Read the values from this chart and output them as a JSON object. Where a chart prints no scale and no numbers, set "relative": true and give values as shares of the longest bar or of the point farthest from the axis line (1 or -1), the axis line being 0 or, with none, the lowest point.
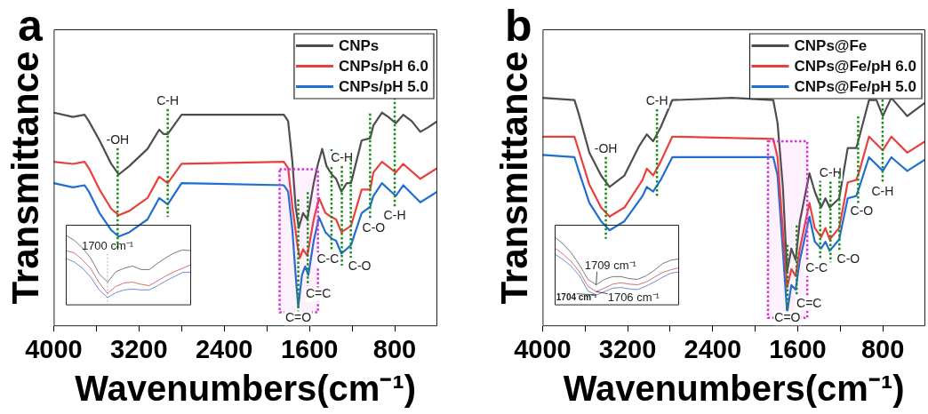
{
  "chart_data": [
    {
      "type": "line",
      "title": "a",
      "xlabel": "Wavenumbers(cm⁻¹)",
      "ylabel": "Transmittance",
      "relative": true,
      "xlim": [
        4000,
        400
      ],
      "xticks": [
        4000,
        {
          "value": 3600,
          "label": null
        },
        3200,
        {
          "value": 2800,
          "label": null
        },
        2400,
        {
          "value": 2000,
          "label": null
        },
        1600,
        {
          "value": 1200,
          "label": null
        },
        800
      ],
      "grid": false,
      "legend": "top right",
      "series": [
        {
          "name": "CNPs",
          "color": "#4d4d4d",
          "x": [
            4000,
            3820,
            3710,
            3670,
            3570,
            3460,
            3390,
            3290,
            3120,
            3010,
            2970,
            2930,
            2800,
            2340,
            1840,
            1800,
            1760,
            1730,
            1700,
            1660,
            1620,
            1560,
            1520,
            1480,
            1440,
            1390,
            1350,
            1300,
            1250,
            1210,
            1110,
            1030,
            1000,
            920,
            860,
            790,
            720,
            640,
            560,
            490,
            400
          ],
          "values": [
            1.0,
            0.98,
            0.99,
            0.96,
            0.87,
            0.76,
            0.71,
            0.75,
            0.83,
            0.92,
            0.9,
            0.9,
            0.99,
            0.99,
            0.99,
            0.96,
            0.77,
            0.56,
            0.46,
            0.53,
            0.5,
            0.67,
            0.76,
            0.83,
            0.75,
            0.71,
            0.69,
            0.63,
            0.67,
            0.67,
            0.87,
            0.88,
            0.94,
            1.0,
            0.98,
            0.95,
            0.99,
            0.96,
            0.91,
            0.93,
            0.96
          ]
        },
        {
          "name": "CNPs/pH 6.0",
          "color": "#e8413c",
          "x": [
            4000,
            3820,
            3710,
            3670,
            3570,
            3460,
            3390,
            3290,
            3120,
            3010,
            2930,
            2800,
            1840,
            1800,
            1760,
            1710,
            1690,
            1660,
            1620,
            1560,
            1510,
            1450,
            1390,
            1350,
            1300,
            1210,
            1110,
            1030,
            1000,
            920,
            790,
            720,
            560,
            400
          ],
          "values": [
            0.77,
            0.76,
            0.77,
            0.74,
            0.64,
            0.55,
            0.52,
            0.54,
            0.6,
            0.7,
            0.67,
            0.76,
            0.77,
            0.74,
            0.56,
            0.37,
            0.32,
            0.36,
            0.33,
            0.5,
            0.6,
            0.53,
            0.51,
            0.5,
            0.44,
            0.47,
            0.64,
            0.64,
            0.72,
            0.77,
            0.72,
            0.76,
            0.69,
            0.74
          ]
        },
        {
          "name": "CNPs/pH 5.0",
          "color": "#1f6fd1",
          "x": [
            4000,
            3820,
            3710,
            3670,
            3570,
            3460,
            3390,
            3290,
            3120,
            3010,
            2930,
            2800,
            1840,
            1800,
            1760,
            1730,
            1705,
            1670,
            1640,
            1610,
            1560,
            1510,
            1450,
            1390,
            1350,
            1300,
            1210,
            1110,
            1030,
            1000,
            920,
            790,
            720,
            560,
            400
          ],
          "values": [
            0.67,
            0.65,
            0.66,
            0.63,
            0.53,
            0.45,
            0.42,
            0.44,
            0.5,
            0.6,
            0.57,
            0.67,
            0.66,
            0.63,
            0.45,
            0.24,
            0.09,
            0.24,
            0.28,
            0.24,
            0.4,
            0.51,
            0.44,
            0.41,
            0.4,
            0.34,
            0.38,
            0.53,
            0.56,
            0.61,
            0.67,
            0.61,
            0.66,
            0.58,
            0.63
          ]
        }
      ],
      "ref_lines": [
        {
          "axis": "x",
          "value": 3400,
          "label": "-OH",
          "color": "#1a8c1a",
          "line_style": "dotted"
        },
        {
          "axis": "x",
          "value": 2930,
          "label": "C-H",
          "color": "#1a8c1a",
          "line_style": "dotted"
        },
        {
          "axis": "x",
          "value": 1705,
          "label": "C=O",
          "color": "#1a8c1a",
          "line_style": "dotted"
        },
        {
          "axis": "x",
          "value": 1616,
          "label": "C=C",
          "color": "#1a8c1a",
          "line_style": "dotted"
        },
        {
          "axis": "x",
          "value": 1393,
          "label": "C-C",
          "color": "#1a8c1a",
          "line_style": "dotted"
        },
        {
          "axis": "x",
          "value": 1296,
          "label": "C-H",
          "color": "#1a8c1a",
          "line_style": "dotted"
        },
        {
          "axis": "x",
          "value": 1212,
          "label": "C-O",
          "color": "#1a8c1a",
          "line_style": "dotted"
        },
        {
          "axis": "x",
          "value": 1031,
          "label": "C-O",
          "color": "#1a8c1a",
          "line_style": "dotted"
        },
        {
          "axis": "x",
          "value": 800,
          "label": "C-H",
          "color": "#1a8c1a",
          "line_style": "dotted"
        }
      ],
      "bands": [
        {
          "axis": "x",
          "from": 1880,
          "to": 1520,
          "color": "#d633d6"
        }
      ]
    },
    {
      "type": "line",
      "relative": true,
      "grid": false,
      "categories": [
        null,
        null,
        null,
        null,
        null,
        null,
        null,
        null,
        null,
        null,
        null,
        null,
        null,
        null,
        null,
        null
      ],
      "series": [
        {
          "color": "#555555",
          "values": [
            1.0,
            0.93,
            0.82,
            0.67,
            0.45,
            0.33,
            0.48,
            0.53,
            0.56,
            0.51,
            0.51,
            0.6,
            0.68,
            0.75,
            0.79,
            0.78
          ]
        },
        {
          "color": "#c0504d",
          "values": [
            0.78,
            0.75,
            0.65,
            0.52,
            0.32,
            0.17,
            0.27,
            0.32,
            0.33,
            0.3,
            0.28,
            0.35,
            0.42,
            0.48,
            0.53,
            0.58
          ]
        },
        {
          "color": "#4a6fc0",
          "values": [
            0.67,
            0.62,
            0.53,
            0.4,
            0.22,
            0.11,
            0.18,
            0.22,
            0.23,
            0.22,
            0.22,
            0.28,
            0.35,
            0.41,
            0.47,
            0.47
          ]
        }
      ],
      "annotations": [
        "1700 cm⁻¹"
      ]
    },
    {
      "type": "line",
      "title": "b",
      "xlabel": "Wavenumbers(cm⁻¹)",
      "ylabel": "Transmittance",
      "relative": true,
      "xlim": [
        4000,
        400
      ],
      "xticks": [
        4000,
        {
          "value": 3600,
          "label": null
        },
        3200,
        {
          "value": 2800,
          "label": null
        },
        2400,
        {
          "value": 2000,
          "label": null
        },
        1600,
        {
          "value": 1200,
          "label": null
        },
        800
      ],
      "grid": false,
      "legend": "top right",
      "series": [
        {
          "name": "CNPs@Fe",
          "color": "#4d4d4d",
          "x": [
            4000,
            3700,
            3660,
            3560,
            3450,
            3370,
            3230,
            3090,
            3020,
            2960,
            2890,
            2780,
            2220,
            1830,
            1790,
            1740,
            1700,
            1660,
            1620,
            1580,
            1490,
            1440,
            1380,
            1340,
            1300,
            1210,
            1130,
            1050,
            1020,
            930,
            860,
            800,
            720,
            570,
            400
          ],
          "values": [
            1.0,
            0.99,
            0.93,
            0.76,
            0.66,
            0.61,
            0.66,
            0.79,
            0.84,
            0.81,
            0.87,
            0.99,
            1.0,
            0.99,
            0.89,
            0.61,
            0.24,
            0.34,
            0.29,
            0.46,
            0.67,
            0.59,
            0.52,
            0.56,
            0.52,
            0.56,
            0.78,
            0.78,
            0.83,
            0.99,
            0.99,
            0.92,
            1.0,
            0.92,
            0.98
          ]
        },
        {
          "name": "CNPs@Fe/pH 6.0",
          "color": "#e8413c",
          "x": [
            4000,
            3700,
            3660,
            3560,
            3450,
            3370,
            3230,
            3060,
            3020,
            2960,
            2890,
            2780,
            1830,
            1790,
            1740,
            1700,
            1660,
            1620,
            1580,
            1490,
            1440,
            1380,
            1340,
            1300,
            1210,
            1130,
            1050,
            1020,
            930,
            800,
            720,
            570,
            400
          ],
          "values": [
            0.83,
            0.83,
            0.77,
            0.62,
            0.52,
            0.48,
            0.52,
            0.64,
            0.69,
            0.66,
            0.72,
            0.83,
            0.82,
            0.74,
            0.42,
            0.17,
            0.25,
            0.22,
            0.34,
            0.54,
            0.43,
            0.39,
            0.43,
            0.38,
            0.43,
            0.63,
            0.64,
            0.68,
            0.83,
            0.77,
            0.83,
            0.76,
            0.81
          ]
        },
        {
          "name": "CNPs@Fe/pH 5.0",
          "color": "#1f6fd1",
          "x": [
            4000,
            3700,
            3660,
            3560,
            3450,
            3370,
            3230,
            3060,
            3020,
            2960,
            2890,
            2780,
            1830,
            1790,
            1740,
            1700,
            1660,
            1620,
            1580,
            1490,
            1440,
            1380,
            1340,
            1300,
            1210,
            1130,
            1050,
            1020,
            930,
            800,
            720,
            570,
            400
          ],
          "values": [
            0.75,
            0.74,
            0.68,
            0.54,
            0.46,
            0.42,
            0.46,
            0.57,
            0.61,
            0.59,
            0.64,
            0.74,
            0.74,
            0.66,
            0.33,
            0.06,
            0.18,
            0.16,
            0.29,
            0.48,
            0.37,
            0.34,
            0.37,
            0.33,
            0.38,
            0.56,
            0.57,
            0.61,
            0.74,
            0.68,
            0.74,
            0.68,
            0.73
          ]
        }
      ],
      "ref_lines": [
        {
          "axis": "x",
          "value": 3405,
          "label": "-OH",
          "color": "#1a8c1a",
          "line_style": "dotted"
        },
        {
          "axis": "x",
          "value": 2924,
          "label": "C-H",
          "color": "#1a8c1a",
          "line_style": "dotted"
        },
        {
          "axis": "x",
          "value": 1697,
          "label": "C=O",
          "color": "#1a8c1a",
          "line_style": "dotted"
        },
        {
          "axis": "x",
          "value": 1610,
          "label": "C=C",
          "color": "#1a8c1a",
          "line_style": "dotted"
        },
        {
          "axis": "x",
          "value": 1389,
          "label": "C-C",
          "color": "#1a8c1a",
          "line_style": "dotted"
        },
        {
          "axis": "x",
          "value": 1292,
          "label": "C-H",
          "color": "#1a8c1a",
          "line_style": "dotted"
        },
        {
          "axis": "x",
          "value": 1208,
          "label": "C-O",
          "color": "#1a8c1a",
          "line_style": "dotted"
        },
        {
          "axis": "x",
          "value": 1032,
          "label": "C-O",
          "color": "#1a8c1a",
          "line_style": "dotted"
        },
        {
          "axis": "x",
          "value": 802,
          "label": "C-H",
          "color": "#1a8c1a",
          "line_style": "dotted"
        }
      ],
      "bands": [
        {
          "axis": "x",
          "from": 1880,
          "to": 1510,
          "color": "#d633d6"
        }
      ]
    },
    {
      "type": "line",
      "relative": true,
      "grid": false,
      "categories": [
        null,
        null,
        null,
        null,
        null,
        null,
        null,
        null,
        null,
        null,
        null,
        null,
        null,
        null,
        null,
        null
      ],
      "series": [
        {
          "color": "#555555",
          "values": [
            1.0,
            0.9,
            0.77,
            0.59,
            0.38,
            0.3,
            0.38,
            0.42,
            0.42,
            0.39,
            0.38,
            0.43,
            0.51,
            0.61,
            0.66,
            0.68
          ]
        },
        {
          "color": "#c0504d",
          "values": [
            0.84,
            0.75,
            0.64,
            0.49,
            0.28,
            0.2,
            0.25,
            0.31,
            0.33,
            0.31,
            0.3,
            0.34,
            0.41,
            0.48,
            0.52,
            0.55
          ]
        },
        {
          "color": "#4a6fc0",
          "values": [
            0.75,
            0.67,
            0.57,
            0.43,
            0.21,
            0.15,
            0.2,
            0.25,
            0.26,
            0.24,
            0.23,
            0.28,
            0.34,
            0.41,
            0.47,
            0.49
          ]
        }
      ],
      "annotations": [
        "1709 cm⁻¹",
        "1706 cm⁻¹",
        "1704 cm⁻¹"
      ]
    }
  ]
}
